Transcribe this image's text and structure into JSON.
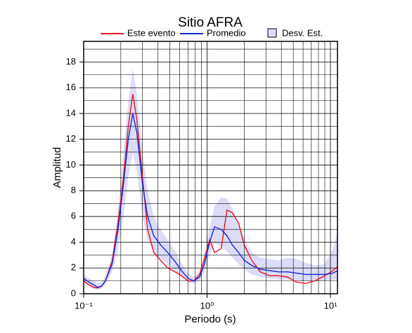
{
  "chart_data": {
    "type": "line",
    "title": "Sitio AFRA",
    "x_label": "Periodo (s)",
    "y_label": "Amplitud",
    "log_x": true,
    "grid": true,
    "xlim": [
      0.1,
      11.4
    ],
    "ylim": [
      0,
      19.6
    ],
    "xticks": [
      {
        "value": 0.1,
        "label": "10⁻¹"
      },
      {
        "value": 1,
        "label": "10⁰"
      },
      {
        "value": 10,
        "label": "10¹"
      }
    ],
    "xminorticks": [
      0.2,
      0.3,
      0.4,
      0.5,
      0.6,
      0.7,
      0.8,
      0.9,
      2,
      3,
      4,
      5,
      6,
      7,
      8,
      9
    ],
    "yticks": [
      0,
      2,
      4,
      6,
      8,
      10,
      12,
      14,
      16,
      18
    ],
    "yminorticks": [
      1,
      3,
      5,
      7,
      9,
      11,
      13,
      15,
      17,
      19
    ],
    "x": [
      0.1,
      0.11,
      0.12,
      0.13,
      0.14,
      0.15,
      0.17,
      0.19,
      0.21,
      0.23,
      0.25,
      0.27,
      0.3,
      0.33,
      0.37,
      0.42,
      0.48,
      0.55,
      0.62,
      0.7,
      0.78,
      0.87,
      0.95,
      1.05,
      1.15,
      1.3,
      1.45,
      1.6,
      1.8,
      2.0,
      2.3,
      2.7,
      3.2,
      3.8,
      4.5,
      5.3,
      6.3,
      7.5,
      9,
      10.5,
      11.4
    ],
    "series": [
      {
        "name": "Este evento",
        "color": "#e8141c",
        "values": [
          1.0,
          0.7,
          0.5,
          0.45,
          0.6,
          1.0,
          2.5,
          5.5,
          9,
          13,
          15.5,
          13.5,
          9,
          5,
          3.2,
          2.6,
          2.0,
          1.7,
          1.4,
          1.0,
          1.0,
          1.5,
          2.7,
          4.2,
          3.2,
          3.5,
          6.5,
          6.3,
          5.5,
          3.8,
          2.6,
          1.7,
          1.4,
          1.4,
          1.3,
          0.9,
          0.8,
          1.0,
          1.4,
          1.8,
          2.1
        ]
      },
      {
        "name": "Promedio",
        "color": "#1428d8",
        "values": [
          1.2,
          0.9,
          0.7,
          0.5,
          0.6,
          1.0,
          2.3,
          5,
          8.5,
          12,
          14,
          12.5,
          8.5,
          6,
          4.5,
          3.8,
          3.2,
          2.5,
          1.8,
          1.2,
          1.0,
          1.3,
          2.3,
          4,
          5.2,
          5.0,
          4.5,
          3.8,
          3.2,
          2.6,
          2.2,
          1.9,
          1.8,
          1.7,
          1.7,
          1.6,
          1.5,
          1.5,
          1.5,
          1.6,
          1.8
        ]
      },
      {
        "name": "Desv. Est.",
        "color": "#dcdcf7",
        "lower": [
          0.9,
          0.6,
          0.4,
          0.3,
          0.4,
          0.7,
          1.7,
          3.5,
          6,
          9,
          11,
          9.5,
          6,
          4.2,
          3.2,
          2.7,
          2.3,
          1.8,
          1.3,
          0.9,
          0.8,
          1.0,
          1.7,
          3.0,
          3.9,
          3.7,
          3.3,
          2.8,
          2.3,
          1.9,
          1.5,
          1.3,
          1.2,
          1.1,
          1.1,
          1.0,
          1.0,
          1.0,
          1.0,
          1.1,
          1.1
        ],
        "upper": [
          1.5,
          1.2,
          1.0,
          0.8,
          0.9,
          1.4,
          3.0,
          6.5,
          11,
          15,
          17.5,
          15.5,
          11,
          8,
          6,
          5,
          4.2,
          3.3,
          2.4,
          1.6,
          1.3,
          1.7,
          3.0,
          5.2,
          6.8,
          7.5,
          7.4,
          6.6,
          5.5,
          4.3,
          3.2,
          2.8,
          2.7,
          2.6,
          2.8,
          2.7,
          2.4,
          2.2,
          2.3,
          3.5,
          4.9
        ]
      }
    ]
  }
}
